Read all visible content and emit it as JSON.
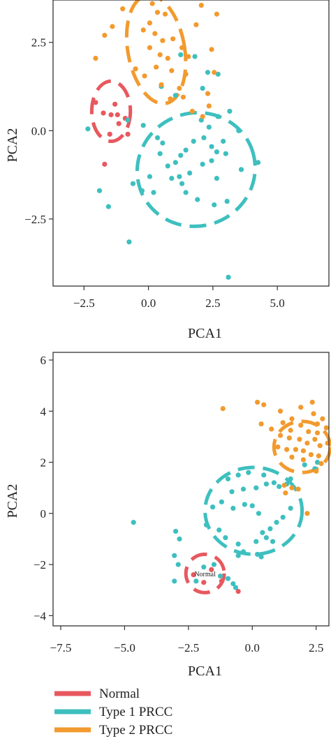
{
  "colors": {
    "normal": "#e8585f",
    "type1": "#3ebfbf",
    "type2": "#f29a2e"
  },
  "legend": [
    {
      "label": "Normal",
      "color": "#e8585f"
    },
    {
      "label": "Type 1 PRCC",
      "color": "#3ebfbf"
    },
    {
      "label": "Type 2 PRCC",
      "color": "#f29a2e"
    }
  ],
  "chart_data": [
    {
      "type": "scatter",
      "xlabel": "PCA1",
      "ylabel": "PCA2",
      "xlim": [
        -3.7,
        7.0
      ],
      "ylim": [
        -4.4,
        3.7
      ],
      "xticks": [
        -2.5,
        0.0,
        2.5,
        5.0
      ],
      "xtick_labels": [
        "−2.5",
        "0.0",
        "2.5",
        "5.0"
      ],
      "yticks": [
        -2.5,
        0.0,
        2.5
      ],
      "ytick_labels": [
        "−2.5",
        "0.0",
        "2.5"
      ],
      "grid": false,
      "series": [
        {
          "key": "normal",
          "color": "#e8585f",
          "ellipse": {
            "cx": -1.45,
            "cy": 0.55,
            "rx": 0.75,
            "ry": 0.85
          },
          "points": [
            [
              -1.45,
              0.45
            ],
            [
              -1.2,
              0.45
            ],
            [
              -1.75,
              0.5
            ],
            [
              -1.3,
              0.75
            ],
            [
              -0.9,
              0.35
            ],
            [
              -1.15,
              0.2
            ],
            [
              -1.5,
              -0.1
            ],
            [
              -0.8,
              -0.1
            ],
            [
              -1.7,
              -0.95
            ],
            [
              -2.05,
              0.8
            ]
          ]
        },
        {
          "key": "type1",
          "color": "#3ebfbf",
          "ellipse": {
            "cx": 1.85,
            "cy": -1.1,
            "rx": 2.3,
            "ry": 1.6,
            "angle": 20
          },
          "points": [
            [
              -2.35,
              0.05
            ],
            [
              -0.8,
              0.3
            ],
            [
              -0.2,
              0.15
            ],
            [
              0.35,
              -0.2
            ],
            [
              0.55,
              -0.35
            ],
            [
              0.45,
              -0.65
            ],
            [
              0.75,
              -1.0
            ],
            [
              1.05,
              -0.9
            ],
            [
              1.25,
              -0.7
            ],
            [
              1.45,
              -0.55
            ],
            [
              1.75,
              -0.3
            ],
            [
              2.15,
              -0.2
            ],
            [
              2.45,
              -0.45
            ],
            [
              2.65,
              -0.6
            ],
            [
              2.9,
              -0.3
            ],
            [
              2.35,
              0.1
            ],
            [
              2.05,
              0.3
            ],
            [
              2.7,
              0.4
            ],
            [
              3.15,
              0.55
            ],
            [
              3.5,
              0.0
            ],
            [
              3.0,
              -0.65
            ],
            [
              2.45,
              -0.85
            ],
            [
              2.1,
              -0.95
            ],
            [
              1.6,
              -1.2
            ],
            [
              1.2,
              -1.3
            ],
            [
              0.9,
              -1.35
            ],
            [
              1.3,
              -1.5
            ],
            [
              1.45,
              -1.75
            ],
            [
              1.9,
              -1.95
            ],
            [
              2.55,
              -2.1
            ],
            [
              3.05,
              -2.0
            ],
            [
              3.6,
              -1.1
            ],
            [
              4.25,
              -0.9
            ],
            [
              0.05,
              -1.3
            ],
            [
              -0.6,
              -1.5
            ],
            [
              -0.25,
              -1.7
            ],
            [
              0.2,
              -1.75
            ],
            [
              2.65,
              -1.35
            ],
            [
              -1.55,
              -2.15
            ],
            [
              -1.9,
              -1.7
            ],
            [
              -0.75,
              -3.15
            ],
            [
              3.1,
              -4.15
            ],
            [
              2.7,
              1.6
            ],
            [
              2.1,
              1.2
            ],
            [
              1.25,
              2.15
            ],
            [
              1.8,
              2.1
            ],
            [
              0.5,
              1.25
            ],
            [
              2.3,
              1.65
            ],
            [
              1.05,
              1.0
            ]
          ]
        },
        {
          "key": "type2",
          "color": "#f29a2e",
          "ellipse": {
            "cx": 0.3,
            "cy": 2.3,
            "rx": 1.1,
            "ry": 1.55,
            "angle": 10
          },
          "points": [
            [
              -1.0,
              3.45
            ],
            [
              0.35,
              3.35
            ],
            [
              0.65,
              3.3
            ],
            [
              0.05,
              3.05
            ],
            [
              -0.2,
              2.85
            ],
            [
              0.25,
              2.75
            ],
            [
              0.55,
              2.55
            ],
            [
              0.95,
              2.6
            ],
            [
              1.3,
              2.35
            ],
            [
              0.05,
              2.35
            ],
            [
              0.45,
              2.15
            ],
            [
              0.75,
              2.05
            ],
            [
              0.3,
              1.8
            ],
            [
              0.9,
              1.7
            ],
            [
              1.45,
              1.6
            ],
            [
              -0.15,
              1.55
            ],
            [
              0.5,
              1.3
            ],
            [
              1.2,
              1.2
            ],
            [
              0.85,
              0.9
            ],
            [
              1.35,
              0.95
            ],
            [
              1.7,
              0.55
            ],
            [
              2.1,
              0.4
            ],
            [
              2.35,
              0.7
            ],
            [
              2.3,
              1.05
            ],
            [
              1.85,
              3.0
            ],
            [
              2.05,
              3.55
            ],
            [
              2.65,
              3.3
            ],
            [
              2.45,
              2.3
            ],
            [
              2.55,
              1.65
            ],
            [
              -1.4,
              2.95
            ],
            [
              -1.7,
              2.7
            ],
            [
              -2.05,
              2.05
            ],
            [
              -0.5,
              1.75
            ],
            [
              0.15,
              3.6
            ],
            [
              1.55,
              2.1
            ]
          ]
        }
      ]
    },
    {
      "type": "scatter",
      "xlabel": "PCA1",
      "ylabel": "PCA2",
      "xlim": [
        -7.8,
        3.0
      ],
      "ylim": [
        -4.4,
        6.3
      ],
      "xticks": [
        -7.5,
        -5.0,
        -2.5,
        0.0,
        2.5
      ],
      "xtick_labels": [
        "−7.5",
        "−5.0",
        "−2.5",
        "0.0",
        "2.5"
      ],
      "yticks": [
        -4,
        -2,
        0,
        2,
        4,
        6
      ],
      "ytick_labels": [
        "−4",
        "−2",
        "0",
        "2",
        "4",
        "6"
      ],
      "grid": false,
      "annotations": [
        {
          "text": "Normal",
          "x": -1.85,
          "y": -2.35
        }
      ],
      "series": [
        {
          "key": "normal",
          "color": "#e8585f",
          "ellipse": {
            "cx": -1.85,
            "cy": -2.35,
            "rx": 0.75,
            "ry": 0.75
          },
          "points": [
            [
              -2.3,
              -2.4
            ],
            [
              -1.2,
              -2.65
            ],
            [
              -1.9,
              -2.7
            ],
            [
              -0.55,
              -3.05
            ],
            [
              -1.6,
              -2.2
            ]
          ]
        },
        {
          "key": "type1",
          "color": "#3ebfbf",
          "ellipse": {
            "cx": 0.05,
            "cy": 0.1,
            "rx": 1.9,
            "ry": 1.7
          },
          "points": [
            [
              -4.65,
              -0.35
            ],
            [
              -3.0,
              -0.7
            ],
            [
              -2.85,
              -1.0
            ],
            [
              -3.05,
              -1.65
            ],
            [
              -2.9,
              -2.0
            ],
            [
              -3.05,
              -2.65
            ],
            [
              -2.2,
              -2.65
            ],
            [
              -1.9,
              -2.1
            ],
            [
              -1.5,
              -2.0
            ],
            [
              -1.25,
              -2.45
            ],
            [
              -0.95,
              -2.55
            ],
            [
              -0.75,
              -2.75
            ],
            [
              -0.65,
              -2.9
            ],
            [
              -1.8,
              -0.45
            ],
            [
              -1.3,
              -0.65
            ],
            [
              -1.05,
              -0.95
            ],
            [
              -0.55,
              -1.2
            ],
            [
              -0.35,
              -1.5
            ],
            [
              0.15,
              -1.1
            ],
            [
              0.4,
              -0.75
            ],
            [
              0.55,
              -0.95
            ],
            [
              0.8,
              -1.1
            ],
            [
              0.7,
              -0.6
            ],
            [
              0.95,
              -0.35
            ],
            [
              1.2,
              -0.15
            ],
            [
              1.5,
              0.2
            ],
            [
              0.25,
              0.0
            ],
            [
              0.0,
              0.3
            ],
            [
              -0.3,
              0.35
            ],
            [
              -0.75,
              0.2
            ],
            [
              -1.2,
              0.45
            ],
            [
              -1.55,
              0.25
            ],
            [
              -0.8,
              0.85
            ],
            [
              -0.35,
              0.95
            ],
            [
              0.15,
              1.0
            ],
            [
              0.55,
              1.15
            ],
            [
              0.85,
              1.2
            ],
            [
              1.05,
              1.05
            ],
            [
              1.35,
              1.15
            ],
            [
              0.45,
              1.5
            ],
            [
              -0.15,
              1.6
            ],
            [
              -0.55,
              1.5
            ],
            [
              -0.95,
              1.35
            ],
            [
              1.5,
              1.35
            ],
            [
              2.05,
              1.9
            ],
            [
              2.45,
              1.75
            ],
            [
              2.55,
              2.0
            ],
            [
              0.35,
              -1.7
            ],
            [
              -0.55,
              -1.65
            ],
            [
              0.2,
              -1.6
            ]
          ]
        },
        {
          "key": "type2",
          "color": "#f29a2e",
          "ellipse": {
            "cx": 1.95,
            "cy": 2.6,
            "rx": 1.1,
            "ry": 1.0
          },
          "points": [
            [
              -1.15,
              4.1
            ],
            [
              0.2,
              4.35
            ],
            [
              0.45,
              4.25
            ],
            [
              1.1,
              4.0
            ],
            [
              1.55,
              3.7
            ],
            [
              1.9,
              4.15
            ],
            [
              2.35,
              4.35
            ],
            [
              2.4,
              3.9
            ],
            [
              2.75,
              3.7
            ],
            [
              2.9,
              3.35
            ],
            [
              2.55,
              3.5
            ],
            [
              1.2,
              3.55
            ],
            [
              1.5,
              3.25
            ],
            [
              1.9,
              3.45
            ],
            [
              2.2,
              3.2
            ],
            [
              2.55,
              3.15
            ],
            [
              0.35,
              3.5
            ],
            [
              0.75,
              3.3
            ],
            [
              1.1,
              3.05
            ],
            [
              1.45,
              2.95
            ],
            [
              1.85,
              2.9
            ],
            [
              2.15,
              2.75
            ],
            [
              2.45,
              2.9
            ],
            [
              2.65,
              2.65
            ],
            [
              2.95,
              2.75
            ],
            [
              1.35,
              2.5
            ],
            [
              1.7,
              2.5
            ],
            [
              2.0,
              2.45
            ],
            [
              2.3,
              2.3
            ],
            [
              2.6,
              2.25
            ],
            [
              1.0,
              2.6
            ],
            [
              1.55,
              2.2
            ],
            [
              2.0,
              2.1
            ],
            [
              2.5,
              1.65
            ],
            [
              1.55,
              1.0
            ],
            [
              1.8,
              0.95
            ],
            [
              1.3,
              0.8
            ],
            [
              2.15,
              0.0
            ],
            [
              1.25,
              1.1
            ],
            [
              2.7,
              1.95
            ]
          ]
        }
      ]
    }
  ]
}
